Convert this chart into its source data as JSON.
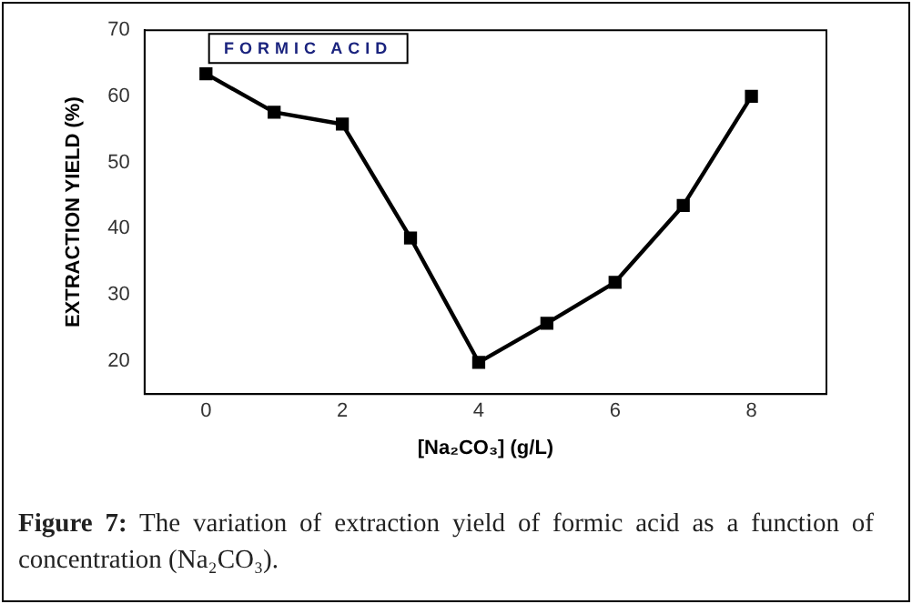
{
  "chart_data": {
    "type": "line",
    "x": [
      0,
      1,
      2,
      3,
      4,
      5,
      6,
      7,
      8
    ],
    "series": [
      {
        "color": "#000000",
        "values": [
          63.4,
          57.6,
          55.8,
          38.6,
          19.8,
          25.7,
          31.9,
          43.5,
          60.0
        ]
      }
    ],
    "xlabel": "[Na₂CO₃] (g/L)",
    "ylabel": "EXTRACTION YIELD (%)",
    "xlim": [
      -0.9,
      9.1
    ],
    "xticks": [
      0,
      2,
      4,
      6,
      8
    ],
    "ylim": [
      15,
      70
    ],
    "yticks": [
      20,
      30,
      40,
      50,
      60,
      70
    ],
    "grid": false,
    "legend": false,
    "marker": "square",
    "line_style": "solid",
    "annotations": [
      "FORMIC ACID",
      "Figure 7: The variation of extraction yield of formic acid as a function of concentration (Na₂CO₃)."
    ]
  }
}
